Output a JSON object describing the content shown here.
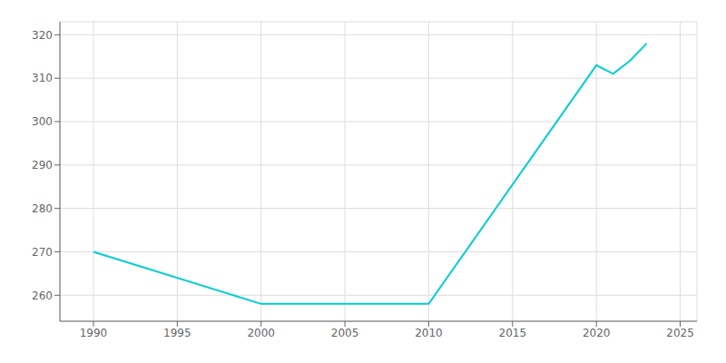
{
  "chart_data": {
    "type": "line",
    "x": [
      1990,
      2000,
      2010,
      2020,
      2021,
      2022,
      2023
    ],
    "values": [
      270,
      258,
      258,
      313,
      311,
      314,
      318
    ],
    "color": "#00CED1",
    "xlim": [
      1988,
      2026
    ],
    "ylim": [
      254,
      323
    ],
    "xticks": [
      1990,
      1995,
      2000,
      2005,
      2010,
      2015,
      2020,
      2025
    ],
    "yticks": [
      260,
      270,
      280,
      290,
      300,
      310,
      320
    ],
    "grid": true
  }
}
